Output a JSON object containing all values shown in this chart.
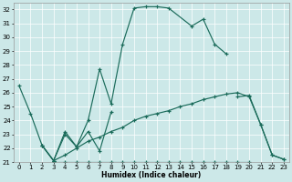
{
  "xlabel": "Humidex (Indice chaleur)",
  "bg_color": "#cce8e8",
  "line_color": "#1a6b5a",
  "xlim": [
    -0.5,
    23.5
  ],
  "ylim": [
    21,
    32.5
  ],
  "yticks": [
    21,
    22,
    23,
    24,
    25,
    26,
    27,
    28,
    29,
    30,
    31,
    32
  ],
  "xticks": [
    0,
    1,
    2,
    3,
    4,
    5,
    6,
    7,
    8,
    9,
    10,
    11,
    12,
    13,
    14,
    15,
    16,
    17,
    18,
    19,
    20,
    21,
    22,
    23
  ],
  "line1_x": [
    0,
    1,
    2,
    3,
    4,
    5,
    6,
    7,
    8,
    9,
    10,
    11,
    12,
    13,
    15,
    16,
    17,
    18
  ],
  "line1_y": [
    26.5,
    24.5,
    22.2,
    21.1,
    23.2,
    22.1,
    24.0,
    27.7,
    25.2,
    29.5,
    32.1,
    32.2,
    32.2,
    32.1,
    30.8,
    31.3,
    29.5,
    28.8
  ],
  "line2_x": [
    2,
    3,
    4,
    5,
    6,
    7,
    8,
    19,
    20,
    21,
    22,
    23
  ],
  "line2_y": [
    22.2,
    21.1,
    23.0,
    22.1,
    23.2,
    21.8,
    24.6,
    25.7,
    25.8,
    23.7,
    21.5,
    21.2
  ],
  "line3_x": [
    3,
    4,
    5,
    6,
    7,
    8,
    9,
    10,
    11,
    12,
    13,
    14,
    15,
    16,
    17,
    18,
    19,
    20
  ],
  "line3_y": [
    21.0,
    21.0,
    21.0,
    21.0,
    21.0,
    21.0,
    21.0,
    21.0,
    21.0,
    21.0,
    21.0,
    21.0,
    21.0,
    21.0,
    21.0,
    21.0,
    21.0,
    21.0
  ],
  "line4_x": [
    2,
    3,
    4,
    5,
    6,
    7,
    8,
    9,
    10,
    11,
    12,
    13,
    14,
    15,
    16,
    17,
    18,
    19,
    20,
    21,
    22,
    23
  ],
  "line4_y": [
    22.2,
    21.1,
    21.5,
    22.0,
    22.5,
    22.8,
    23.2,
    23.5,
    24.0,
    24.3,
    24.5,
    24.7,
    25.0,
    25.2,
    25.5,
    25.7,
    25.9,
    26.0,
    25.7,
    23.7,
    21.5,
    21.2
  ]
}
